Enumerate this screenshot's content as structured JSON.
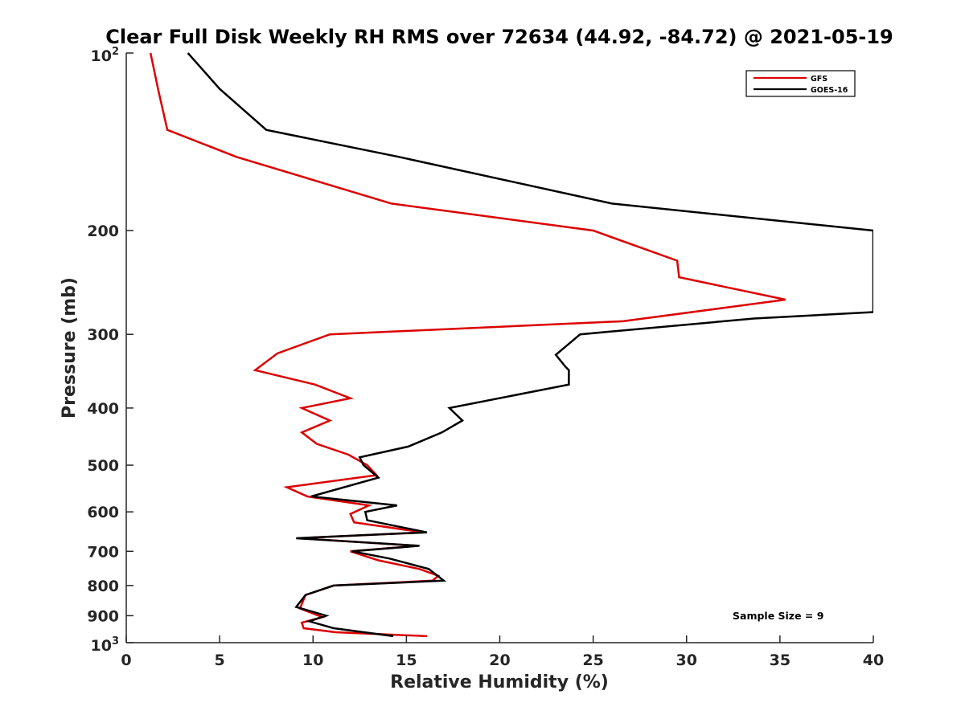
{
  "chart_data": {
    "type": "line",
    "title": "Clear Full Disk Weekly RH RMS over 72634 (44.92, -84.72) @ 2021-05-19",
    "xlabel": "Relative Humidity (%)",
    "ylabel": "Pressure (mb)",
    "xlim": [
      0,
      40
    ],
    "ylim": [
      100,
      1000
    ],
    "yscale": "log",
    "yreversed": true,
    "x_ticks": [
      0,
      5,
      10,
      15,
      20,
      25,
      30,
      35,
      40
    ],
    "x_tick_labels": [
      "0",
      "5",
      "10",
      "15",
      "20",
      "25",
      "30",
      "35",
      "40"
    ],
    "y_ticks": [
      200,
      300,
      400,
      500,
      600,
      700,
      800,
      900
    ],
    "y_tick_labels": [
      "200",
      "300",
      "400",
      "500",
      "600",
      "700",
      "800",
      "900"
    ],
    "y_end_labels": {
      "top": {
        "base": "10",
        "exp": "2"
      },
      "bottom": {
        "base": "10",
        "exp": "3"
      }
    },
    "legend": {
      "location": "top-right",
      "entries": [
        "GFS",
        "GOES-16"
      ]
    },
    "annotation": "Sample Size = 9",
    "series": [
      {
        "name": "GFS",
        "color": "#dd0000",
        "points": [
          [
            1.3,
            100
          ],
          [
            1.7,
            115
          ],
          [
            2.2,
            135
          ],
          [
            5.9,
            150
          ],
          [
            14.2,
            180
          ],
          [
            25.0,
            200
          ],
          [
            29.5,
            225
          ],
          [
            29.6,
            240
          ],
          [
            35.3,
            262
          ],
          [
            26.6,
            285
          ],
          [
            10.9,
            300
          ],
          [
            8.1,
            323
          ],
          [
            6.9,
            345
          ],
          [
            10.1,
            365
          ],
          [
            12.0,
            385
          ],
          [
            9.4,
            400
          ],
          [
            10.9,
            420
          ],
          [
            9.4,
            440
          ],
          [
            10.2,
            460
          ],
          [
            11.9,
            480
          ],
          [
            12.9,
            500
          ],
          [
            13.4,
            520
          ],
          [
            8.6,
            545
          ],
          [
            9.7,
            565
          ],
          [
            13.0,
            585
          ],
          [
            12.0,
            605
          ],
          [
            12.2,
            625
          ],
          [
            15.9,
            650
          ],
          [
            9.2,
            665
          ],
          [
            15.6,
            685
          ],
          [
            12.0,
            700
          ],
          [
            13.5,
            725
          ],
          [
            15.7,
            750
          ],
          [
            16.7,
            770
          ],
          [
            16.4,
            785
          ],
          [
            11.1,
            800
          ],
          [
            9.6,
            830
          ],
          [
            9.3,
            875
          ],
          [
            10.5,
            905
          ],
          [
            9.4,
            925
          ],
          [
            9.5,
            945
          ],
          [
            11.2,
            960
          ],
          [
            16.1,
            975
          ]
        ]
      },
      {
        "name": "GOES-16",
        "color": "#000000",
        "points": [
          [
            3.3,
            100
          ],
          [
            5.0,
            115
          ],
          [
            7.5,
            135
          ],
          [
            14.6,
            150
          ],
          [
            26.0,
            180
          ],
          [
            40.0,
            200
          ],
          [
            40.0,
            275
          ],
          [
            33.6,
            282
          ],
          [
            24.3,
            300
          ],
          [
            23.0,
            325
          ],
          [
            23.5,
            340
          ],
          [
            23.7,
            345
          ],
          [
            23.7,
            365
          ],
          [
            17.3,
            400
          ],
          [
            18.0,
            420
          ],
          [
            16.9,
            440
          ],
          [
            15.1,
            465
          ],
          [
            12.5,
            485
          ],
          [
            12.7,
            500
          ],
          [
            13.5,
            525
          ],
          [
            9.9,
            565
          ],
          [
            14.5,
            585
          ],
          [
            12.8,
            600
          ],
          [
            12.9,
            620
          ],
          [
            16.1,
            650
          ],
          [
            9.1,
            665
          ],
          [
            15.7,
            685
          ],
          [
            12.1,
            700
          ],
          [
            14.1,
            720
          ],
          [
            16.2,
            750
          ],
          [
            17.0,
            785
          ],
          [
            11.1,
            800
          ],
          [
            9.6,
            830
          ],
          [
            9.1,
            870
          ],
          [
            10.7,
            900
          ],
          [
            9.8,
            920
          ],
          [
            11.1,
            945
          ],
          [
            14.3,
            975
          ]
        ]
      }
    ]
  }
}
